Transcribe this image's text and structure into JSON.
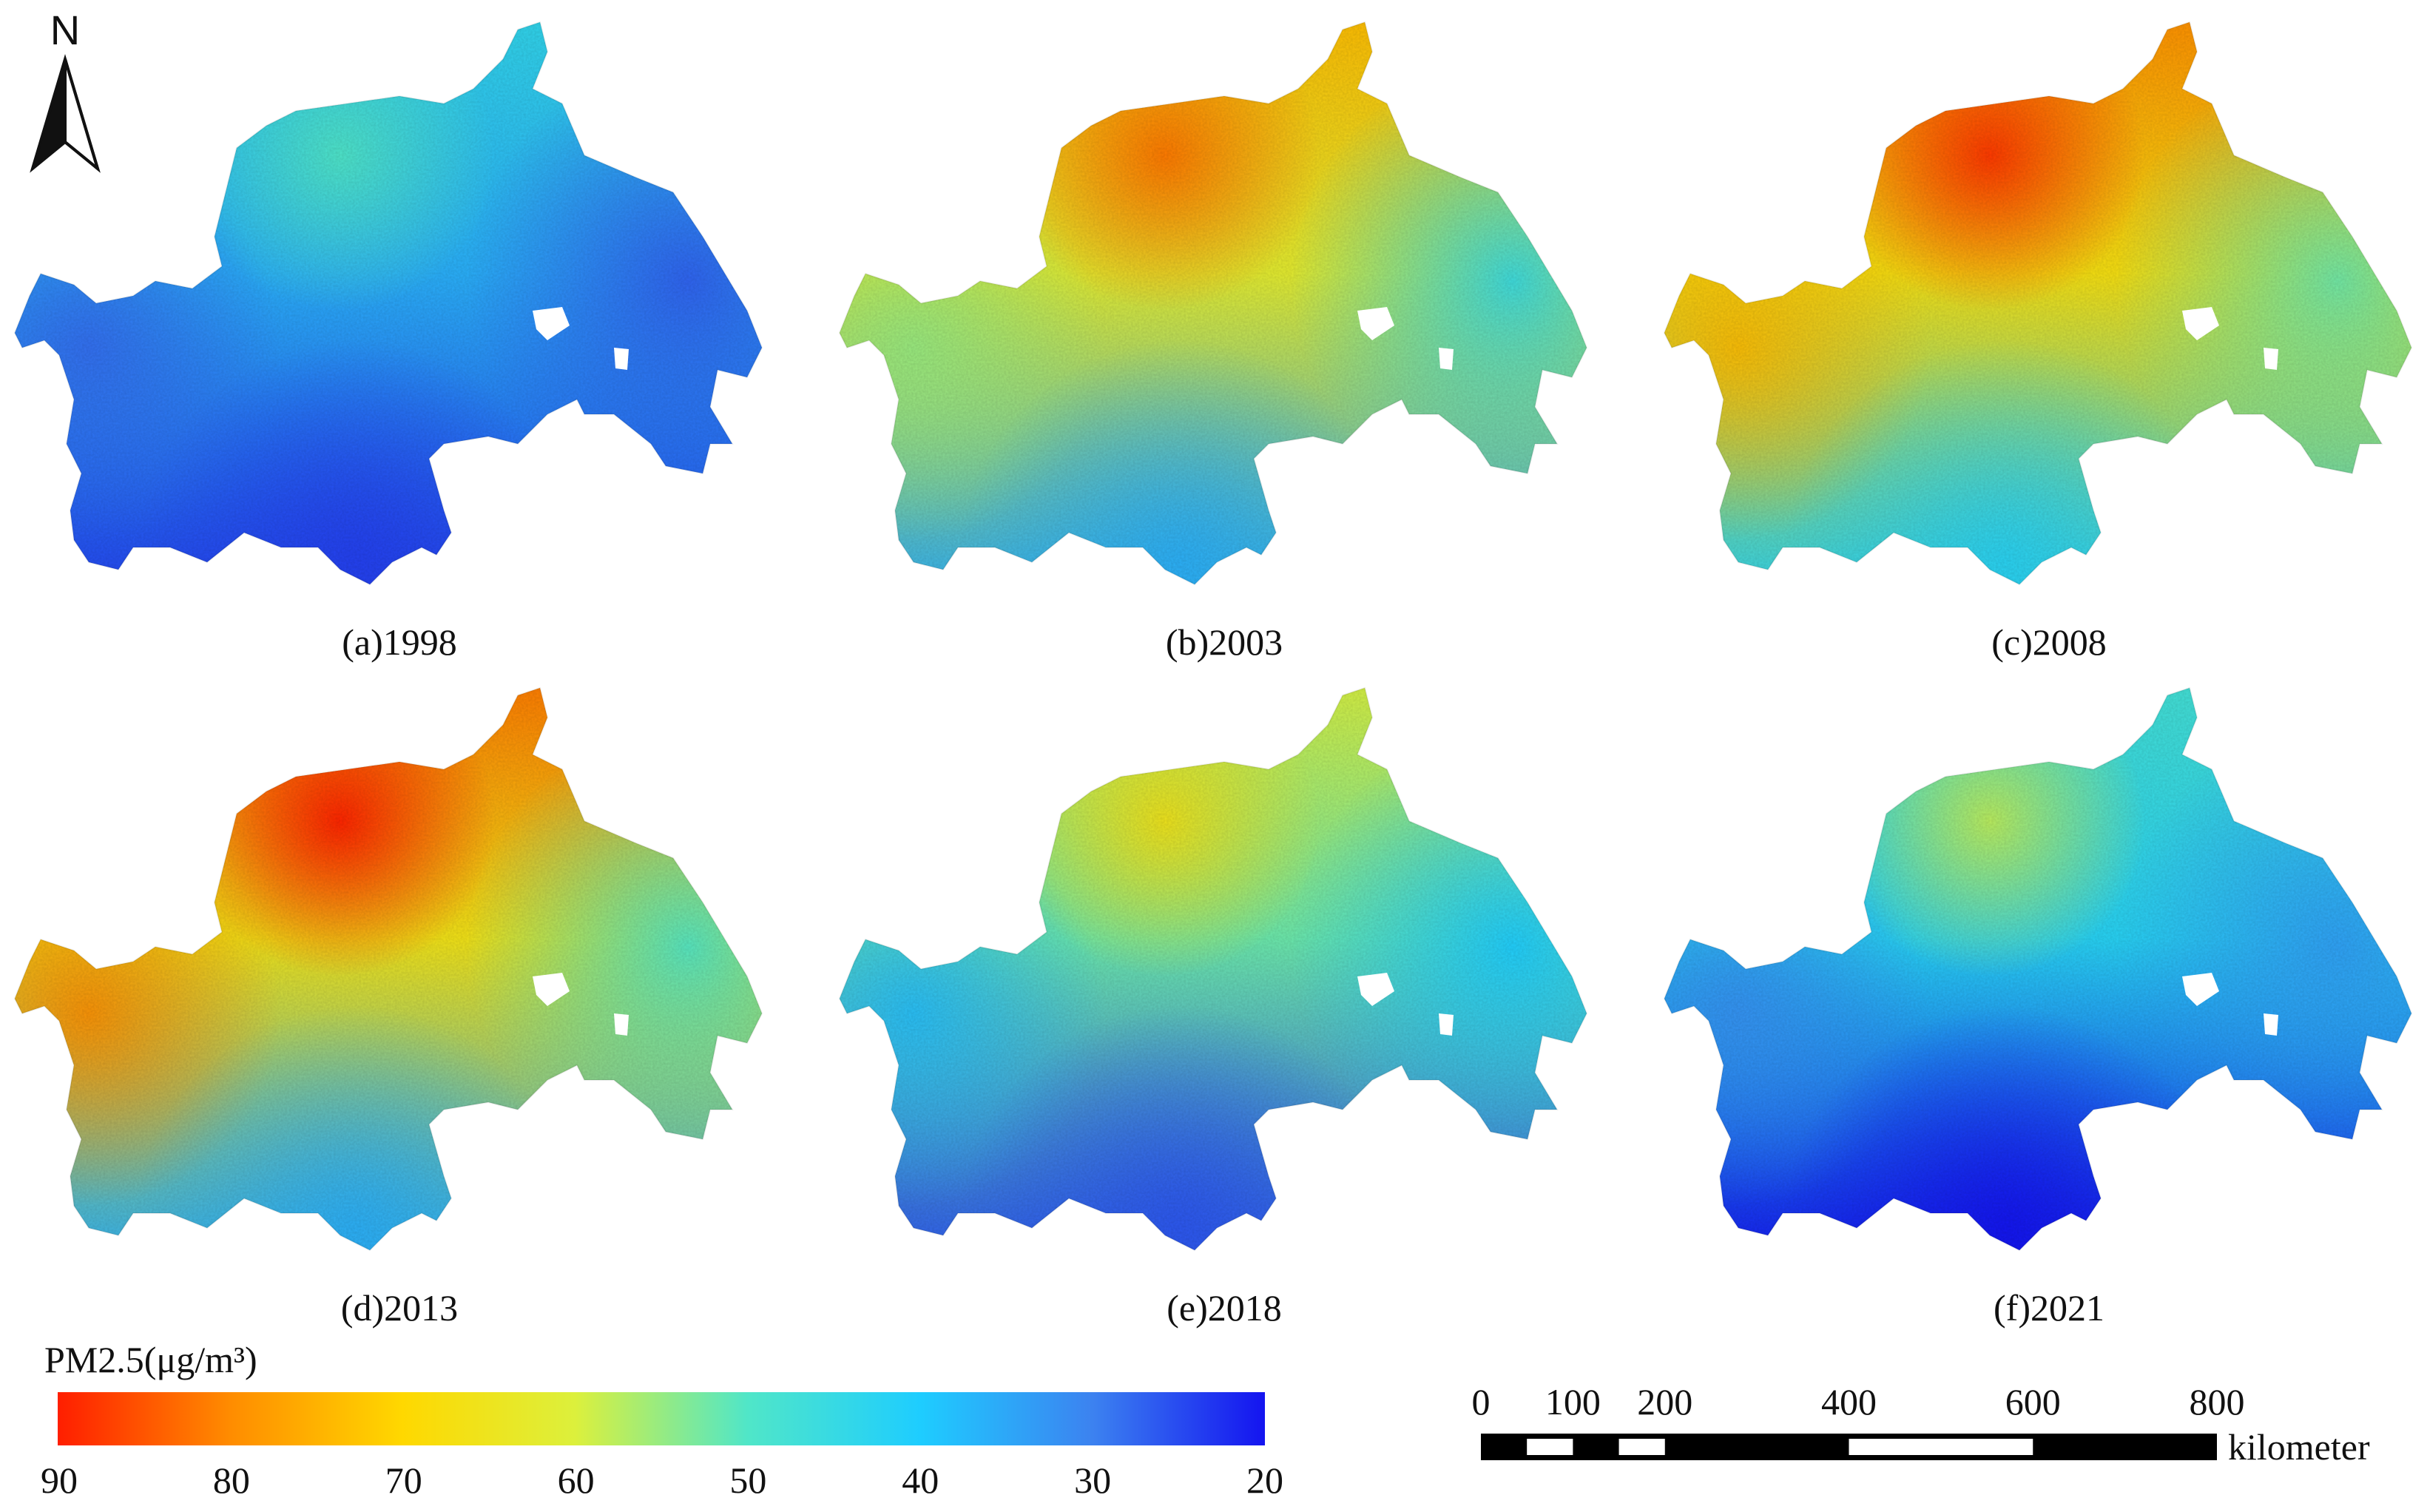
{
  "north_arrow": {
    "label": "N",
    "icon": "north-arrow-icon"
  },
  "maps": [
    {
      "id": "a",
      "caption": "(a)1998",
      "levels": {
        "base": 36,
        "north": 44,
        "east": 27,
        "south": 24,
        "west": 28,
        "hotspot": 50
      }
    },
    {
      "id": "b",
      "caption": "(b)2003",
      "levels": {
        "base": 62,
        "north": 74,
        "east": 45,
        "south": 36,
        "west": 55,
        "hotspot": 82
      }
    },
    {
      "id": "c",
      "caption": "(c)2008",
      "levels": {
        "base": 67,
        "north": 80,
        "east": 52,
        "south": 42,
        "west": 74,
        "hotspot": 88
      }
    },
    {
      "id": "d",
      "caption": "(d)2013",
      "levels": {
        "base": 66,
        "north": 82,
        "east": 50,
        "south": 36,
        "west": 80,
        "hotspot": 90
      }
    },
    {
      "id": "e",
      "caption": "(e)2018",
      "levels": {
        "base": 52,
        "north": 60,
        "east": 40,
        "south": 26,
        "west": 38,
        "hotspot": 66
      }
    },
    {
      "id": "f",
      "caption": "(f)2021",
      "levels": {
        "base": 42,
        "north": 48,
        "east": 34,
        "south": 20,
        "west": 32,
        "hotspot": 58
      }
    }
  ],
  "legend": {
    "title": "PM2.5(μg/m³)",
    "ticks": [
      "90",
      "80",
      "70",
      "60",
      "50",
      "40",
      "30",
      "20"
    ],
    "range": [
      90,
      20
    ],
    "colors": [
      "#ff1e00",
      "#ff8c00",
      "#ffd800",
      "#dcf03c",
      "#50e6c8",
      "#1ecdff",
      "#3c82f0",
      "#1414f0"
    ]
  },
  "scale_bar": {
    "labels": [
      "0",
      "100",
      "200",
      "400",
      "600",
      "800"
    ],
    "values": [
      0,
      100,
      200,
      400,
      600,
      800
    ],
    "unit": "kilometer"
  }
}
